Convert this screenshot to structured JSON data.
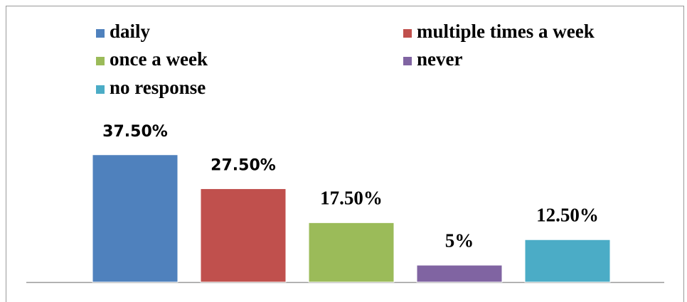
{
  "chart_data": {
    "type": "bar",
    "series": [
      {
        "name": "daily",
        "color": "#4f81bd",
        "values": [
          37.5
        ],
        "value_labels": [
          "37.50%"
        ]
      },
      {
        "name": "multiple times a week",
        "color": "#c0504d",
        "values": [
          27.5
        ],
        "value_labels": [
          "27.50%"
        ]
      },
      {
        "name": "once a week",
        "color": "#9bbb59",
        "values": [
          17.5
        ],
        "value_labels": [
          "17.50%"
        ]
      },
      {
        "name": "never",
        "color": "#8064a2",
        "values": [
          5
        ],
        "value_labels": [
          "5%"
        ]
      },
      {
        "name": "no response",
        "color": "#4bacc6",
        "values": [
          12.5
        ],
        "value_labels": [
          "12.50%"
        ]
      }
    ],
    "legend": "top"
  }
}
